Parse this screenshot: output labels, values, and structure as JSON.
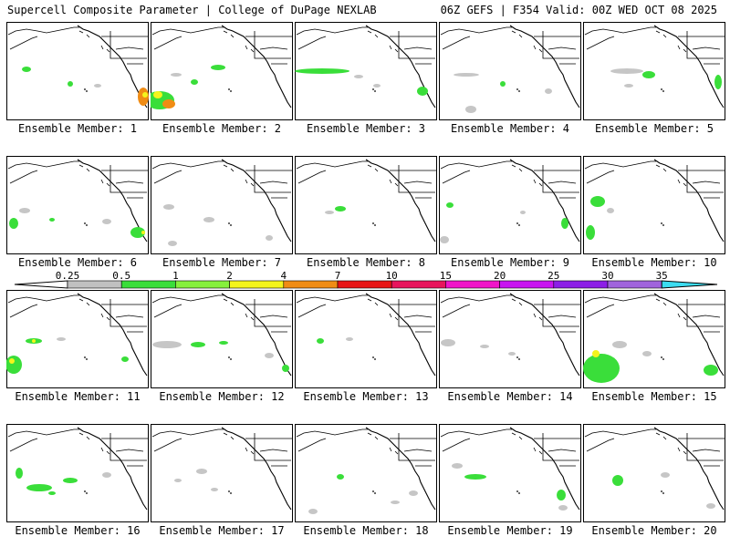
{
  "header": {
    "left": "Supercell Composite Parameter | College of DuPage NEXLAB",
    "right": "06Z GEFS | F354 Valid: 00Z WED OCT 08 2025"
  },
  "colorbar": {
    "labels": [
      "0.25",
      "0.5",
      "1",
      "2",
      "4",
      "7",
      "10",
      "15",
      "20",
      "25",
      "30",
      "35"
    ],
    "colors": [
      "#c0c0c0",
      "#3ade3a",
      "#86f03c",
      "#f4f41c",
      "#f08c14",
      "#e81414",
      "#e8145c",
      "#f014c8",
      "#c814f0",
      "#8c1ee6",
      "#a064dc",
      "#3cdcf0"
    ]
  },
  "member_prefix": "Ensemble Member:",
  "members": [
    {
      "num": "1",
      "blobs": [
        [
          "g",
          22,
          52,
          5,
          3
        ],
        [
          "g",
          70,
          68,
          3,
          3
        ],
        [
          "c",
          150,
          82,
          6,
          10
        ],
        [
          "y",
          152,
          80,
          3,
          3
        ],
        [
          "s",
          100,
          70,
          4,
          2
        ]
      ]
    },
    {
      "num": "2",
      "blobs": [
        [
          "g",
          10,
          86,
          16,
          10
        ],
        [
          "y",
          8,
          80,
          5,
          4
        ],
        [
          "c",
          20,
          90,
          7,
          5
        ],
        [
          "g",
          74,
          50,
          8,
          3
        ],
        [
          "g",
          48,
          66,
          4,
          3
        ],
        [
          "s",
          28,
          58,
          6,
          2
        ]
      ]
    },
    {
      "num": "3",
      "blobs": [
        [
          "g",
          30,
          54,
          30,
          3
        ],
        [
          "g",
          140,
          76,
          6,
          5
        ],
        [
          "s",
          70,
          60,
          5,
          2
        ],
        [
          "s",
          90,
          70,
          4,
          2
        ]
      ]
    },
    {
      "num": "4",
      "blobs": [
        [
          "g",
          70,
          68,
          3,
          3
        ],
        [
          "s",
          30,
          58,
          14,
          2
        ],
        [
          "s",
          35,
          96,
          6,
          4
        ],
        [
          "s",
          120,
          76,
          4,
          3
        ]
      ]
    },
    {
      "num": "5",
      "blobs": [
        [
          "g",
          72,
          58,
          7,
          4
        ],
        [
          "s",
          48,
          54,
          18,
          3
        ],
        [
          "g",
          148,
          66,
          4,
          8
        ],
        [
          "s",
          50,
          70,
          5,
          2
        ]
      ]
    },
    {
      "num": "6",
      "blobs": [
        [
          "g",
          8,
          74,
          5,
          6
        ],
        [
          "s",
          20,
          60,
          6,
          3
        ],
        [
          "g",
          144,
          84,
          8,
          6
        ],
        [
          "y",
          150,
          84,
          2,
          2
        ],
        [
          "s",
          110,
          72,
          5,
          3
        ],
        [
          "g",
          50,
          70,
          3,
          2
        ]
      ]
    },
    {
      "num": "7",
      "blobs": [
        [
          "s",
          20,
          56,
          6,
          3
        ],
        [
          "s",
          64,
          70,
          6,
          3
        ],
        [
          "s",
          24,
          96,
          5,
          3
        ],
        [
          "s",
          130,
          90,
          4,
          3
        ]
      ]
    },
    {
      "num": "8",
      "blobs": [
        [
          "g",
          50,
          58,
          6,
          3
        ],
        [
          "s",
          38,
          62,
          5,
          2
        ]
      ]
    },
    {
      "num": "9",
      "blobs": [
        [
          "g",
          12,
          54,
          4,
          3
        ],
        [
          "g",
          138,
          74,
          4,
          6
        ],
        [
          "s",
          92,
          62,
          3,
          2
        ],
        [
          "s",
          6,
          92,
          5,
          4
        ]
      ]
    },
    {
      "num": "10",
      "blobs": [
        [
          "g",
          16,
          50,
          8,
          6
        ],
        [
          "g",
          8,
          84,
          5,
          8
        ],
        [
          "s",
          30,
          60,
          4,
          3
        ]
      ]
    },
    {
      "num": "11",
      "blobs": [
        [
          "g",
          8,
          82,
          9,
          10
        ],
        [
          "y",
          6,
          78,
          3,
          3
        ],
        [
          "g",
          30,
          56,
          9,
          3
        ],
        [
          "y",
          30,
          56,
          2,
          2
        ],
        [
          "s",
          60,
          54,
          5,
          2
        ],
        [
          "g",
          130,
          76,
          4,
          3
        ]
      ]
    },
    {
      "num": "12",
      "blobs": [
        [
          "s",
          18,
          60,
          16,
          4
        ],
        [
          "g",
          52,
          60,
          8,
          3
        ],
        [
          "g",
          80,
          58,
          5,
          2
        ],
        [
          "g",
          148,
          86,
          4,
          4
        ],
        [
          "s",
          130,
          72,
          5,
          3
        ]
      ]
    },
    {
      "num": "13",
      "blobs": [
        [
          "g",
          28,
          56,
          4,
          3
        ],
        [
          "s",
          60,
          54,
          4,
          2
        ]
      ]
    },
    {
      "num": "14",
      "blobs": [
        [
          "s",
          10,
          58,
          8,
          4
        ],
        [
          "s",
          50,
          62,
          5,
          2
        ],
        [
          "s",
          80,
          70,
          4,
          2
        ]
      ]
    },
    {
      "num": "15",
      "blobs": [
        [
          "g",
          20,
          86,
          20,
          16
        ],
        [
          "y",
          14,
          70,
          4,
          4
        ],
        [
          "s",
          40,
          60,
          8,
          4
        ],
        [
          "g",
          140,
          88,
          8,
          6
        ],
        [
          "s",
          70,
          70,
          5,
          3
        ]
      ]
    },
    {
      "num": "16",
      "blobs": [
        [
          "g",
          14,
          54,
          4,
          6
        ],
        [
          "g",
          36,
          70,
          14,
          4
        ],
        [
          "g",
          70,
          62,
          8,
          3
        ],
        [
          "s",
          110,
          56,
          5,
          3
        ],
        [
          "g",
          50,
          76,
          4,
          2
        ]
      ]
    },
    {
      "num": "17",
      "blobs": [
        [
          "s",
          56,
          52,
          6,
          3
        ],
        [
          "s",
          30,
          62,
          4,
          2
        ],
        [
          "s",
          70,
          72,
          4,
          2
        ]
      ]
    },
    {
      "num": "18",
      "blobs": [
        [
          "g",
          50,
          58,
          4,
          3
        ],
        [
          "s",
          130,
          76,
          5,
          3
        ],
        [
          "s",
          110,
          86,
          5,
          2
        ],
        [
          "s",
          20,
          96,
          5,
          3
        ]
      ]
    },
    {
      "num": "19",
      "blobs": [
        [
          "g",
          40,
          58,
          12,
          3
        ],
        [
          "g",
          134,
          78,
          5,
          6
        ],
        [
          "s",
          20,
          46,
          6,
          3
        ],
        [
          "s",
          136,
          92,
          5,
          3
        ]
      ]
    },
    {
      "num": "20",
      "blobs": [
        [
          "g",
          38,
          62,
          6,
          6
        ],
        [
          "s",
          90,
          56,
          5,
          3
        ],
        [
          "s",
          140,
          90,
          5,
          3
        ]
      ]
    }
  ]
}
